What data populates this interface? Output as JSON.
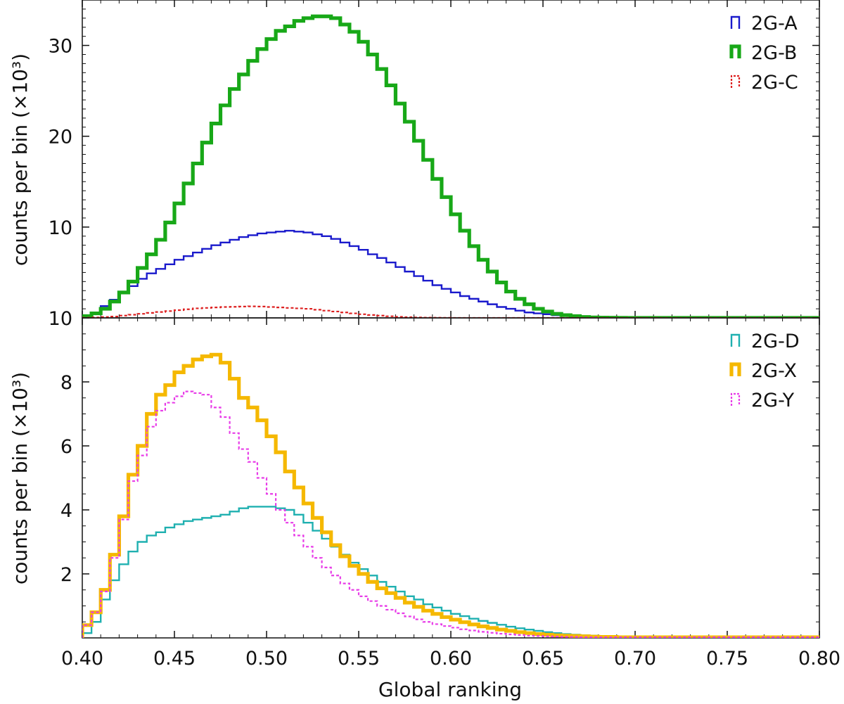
{
  "chart_data": [
    {
      "type": "histogram",
      "panel": "top",
      "ylabel": "counts per bin (×10³)",
      "xlabel": "",
      "xlim": [
        0.4,
        0.8
      ],
      "ylim": [
        0,
        35
      ],
      "yticks": [
        10,
        20,
        30
      ],
      "x_bin_edges": [
        0.4,
        0.405,
        0.41,
        0.415,
        0.42,
        0.425,
        0.43,
        0.435,
        0.44,
        0.445,
        0.45,
        0.455,
        0.46,
        0.465,
        0.47,
        0.475,
        0.48,
        0.485,
        0.49,
        0.495,
        0.5,
        0.505,
        0.51,
        0.515,
        0.52,
        0.525,
        0.53,
        0.535,
        0.54,
        0.545,
        0.55,
        0.555,
        0.56,
        0.565,
        0.57,
        0.575,
        0.58,
        0.585,
        0.59,
        0.595,
        0.6,
        0.605,
        0.61,
        0.615,
        0.62,
        0.625,
        0.63,
        0.635,
        0.64,
        0.645,
        0.65,
        0.655,
        0.66,
        0.665,
        0.67,
        0.675,
        0.68,
        0.685,
        0.69,
        0.695,
        0.7,
        0.705,
        0.71,
        0.715,
        0.72,
        0.725,
        0.73,
        0.735,
        0.74,
        0.745,
        0.75,
        0.755,
        0.76,
        0.765,
        0.77,
        0.775,
        0.78,
        0.785,
        0.79,
        0.795,
        0.8
      ],
      "legend_position": "top-right",
      "series": [
        {
          "name": "2G-A",
          "color": "#1a1acc",
          "style": "solid-thin",
          "values": [
            0.2,
            0.5,
            1.3,
            2.0,
            2.8,
            3.5,
            4.3,
            4.9,
            5.4,
            5.9,
            6.4,
            6.8,
            7.2,
            7.6,
            8.0,
            8.3,
            8.6,
            8.9,
            9.1,
            9.3,
            9.4,
            9.5,
            9.6,
            9.5,
            9.4,
            9.2,
            9.0,
            8.7,
            8.3,
            7.9,
            7.5,
            7.0,
            6.6,
            6.1,
            5.6,
            5.1,
            4.6,
            4.1,
            3.6,
            3.2,
            2.8,
            2.4,
            2.1,
            1.8,
            1.5,
            1.2,
            1.0,
            0.8,
            0.6,
            0.5,
            0.4,
            0.3,
            0.25,
            0.2,
            0.15,
            0.1,
            0.08,
            0.05,
            0.04,
            0.02,
            0.01,
            0.01,
            0,
            0,
            0,
            0,
            0,
            0,
            0,
            0,
            0,
            0,
            0,
            0,
            0,
            0,
            0,
            0,
            0,
            0
          ]
        },
        {
          "name": "2G-B",
          "color": "#18a818",
          "style": "solid-thick",
          "values": [
            0.2,
            0.5,
            1.0,
            1.8,
            2.8,
            4.0,
            5.5,
            7.0,
            8.6,
            10.5,
            12.6,
            14.8,
            17.0,
            19.3,
            21.4,
            23.4,
            25.2,
            26.8,
            28.3,
            29.6,
            30.7,
            31.6,
            32.1,
            32.7,
            33.0,
            33.2,
            33.2,
            33.0,
            32.3,
            31.5,
            30.4,
            29.0,
            27.4,
            25.6,
            23.6,
            21.6,
            19.5,
            17.4,
            15.3,
            13.3,
            11.4,
            9.6,
            7.9,
            6.4,
            5.1,
            3.9,
            2.9,
            2.1,
            1.5,
            1.0,
            0.7,
            0.45,
            0.3,
            0.2,
            0.1,
            0.05,
            0.03,
            0.02,
            0.01,
            0,
            0,
            0,
            0,
            0,
            0,
            0,
            0,
            0,
            0,
            0,
            0,
            0,
            0,
            0,
            0,
            0,
            0,
            0,
            0,
            0
          ]
        },
        {
          "name": "2G-C",
          "color": "#dd2020",
          "style": "dashed",
          "values": [
            0.02,
            0.05,
            0.1,
            0.15,
            0.25,
            0.35,
            0.45,
            0.55,
            0.65,
            0.75,
            0.85,
            0.95,
            1.05,
            1.1,
            1.15,
            1.2,
            1.22,
            1.25,
            1.27,
            1.25,
            1.2,
            1.15,
            1.1,
            1.05,
            1.0,
            0.9,
            0.8,
            0.7,
            0.6,
            0.5,
            0.4,
            0.32,
            0.25,
            0.18,
            0.12,
            0.08,
            0.05,
            0.03,
            0.02,
            0.01,
            0,
            0,
            0,
            0,
            0,
            0,
            0,
            0,
            0,
            0,
            0,
            0,
            0,
            0,
            0,
            0,
            0,
            0,
            0,
            0,
            0,
            0,
            0,
            0,
            0,
            0,
            0,
            0,
            0,
            0,
            0,
            0,
            0,
            0,
            0,
            0,
            0,
            0,
            0,
            0
          ]
        }
      ]
    },
    {
      "type": "histogram",
      "panel": "bottom",
      "ylabel": "counts per bin (×10³)",
      "xlabel": "Global ranking",
      "xlim": [
        0.4,
        0.8
      ],
      "ylim": [
        0,
        10
      ],
      "yticks": [
        2,
        4,
        6,
        8,
        10
      ],
      "xticks": [
        "0.40",
        "0.45",
        "0.50",
        "0.55",
        "0.60",
        "0.65",
        "0.70",
        "0.75",
        "0.80"
      ],
      "legend_position": "top-right",
      "series": [
        {
          "name": "2G-D",
          "color": "#1fb0b0",
          "style": "solid-thin",
          "values": [
            0.15,
            0.5,
            1.2,
            1.8,
            2.3,
            2.7,
            3.0,
            3.2,
            3.3,
            3.45,
            3.55,
            3.65,
            3.7,
            3.75,
            3.8,
            3.85,
            3.95,
            4.05,
            4.1,
            4.1,
            4.1,
            4.05,
            4.0,
            3.85,
            3.6,
            3.35,
            3.1,
            2.85,
            2.6,
            2.35,
            2.15,
            1.95,
            1.75,
            1.6,
            1.45,
            1.3,
            1.2,
            1.05,
            0.95,
            0.85,
            0.75,
            0.68,
            0.6,
            0.53,
            0.47,
            0.41,
            0.35,
            0.3,
            0.26,
            0.22,
            0.18,
            0.15,
            0.12,
            0.1,
            0.08,
            0.07,
            0.06,
            0.05,
            0.04,
            0.04,
            0.03,
            0.03,
            0.03,
            0.02,
            0.02,
            0.02,
            0.02,
            0.02,
            0.02,
            0.02,
            0.02,
            0.02,
            0.02,
            0.02,
            0.02,
            0.02,
            0.02,
            0.02,
            0.02,
            0.02
          ]
        },
        {
          "name": "2G-X",
          "color": "#f5b800",
          "style": "solid-thick",
          "values": [
            0.4,
            0.8,
            1.5,
            2.6,
            3.8,
            5.1,
            6.0,
            7.0,
            7.6,
            7.9,
            8.3,
            8.5,
            8.7,
            8.8,
            8.85,
            8.6,
            8.1,
            7.5,
            7.2,
            6.8,
            6.3,
            5.8,
            5.2,
            4.7,
            4.2,
            3.75,
            3.3,
            2.9,
            2.55,
            2.25,
            2.0,
            1.75,
            1.55,
            1.4,
            1.25,
            1.1,
            0.97,
            0.85,
            0.75,
            0.65,
            0.57,
            0.49,
            0.42,
            0.36,
            0.31,
            0.26,
            0.22,
            0.18,
            0.15,
            0.12,
            0.1,
            0.08,
            0.07,
            0.06,
            0.05,
            0.04,
            0.03,
            0.03,
            0.02,
            0.02,
            0.02,
            0.02,
            0.02,
            0.02,
            0.02,
            0.02,
            0.02,
            0.02,
            0.02,
            0.02,
            0.02,
            0.02,
            0.02,
            0.02,
            0.02,
            0.02,
            0.02,
            0.02,
            0.02,
            0.02
          ]
        },
        {
          "name": "2G-Y",
          "color": "#e83ce8",
          "style": "dashed",
          "values": [
            0.4,
            0.8,
            1.45,
            2.5,
            3.7,
            4.9,
            5.7,
            6.6,
            7.1,
            7.35,
            7.55,
            7.7,
            7.65,
            7.6,
            7.2,
            6.9,
            6.4,
            5.9,
            5.5,
            5.0,
            4.5,
            4.0,
            3.6,
            3.2,
            2.85,
            2.5,
            2.2,
            1.95,
            1.7,
            1.5,
            1.3,
            1.15,
            1.0,
            0.88,
            0.77,
            0.67,
            0.58,
            0.5,
            0.43,
            0.37,
            0.32,
            0.27,
            0.23,
            0.19,
            0.16,
            0.13,
            0.11,
            0.09,
            0.07,
            0.06,
            0.05,
            0.04,
            0.03,
            0.03,
            0.02,
            0.02,
            0.02,
            0.02,
            0.02,
            0.02,
            0.02,
            0.02,
            0.02,
            0.02,
            0.02,
            0.02,
            0.02,
            0.02,
            0.02,
            0.02,
            0.02,
            0.02,
            0.02,
            0.02,
            0.02,
            0.02,
            0.02,
            0.02,
            0.02,
            0.02
          ]
        }
      ]
    }
  ],
  "labels": {
    "top_ylabel": "counts per bin (×10³)",
    "bottom_ylabel": "counts per bin (×10³)",
    "xlabel": "Global ranking"
  }
}
